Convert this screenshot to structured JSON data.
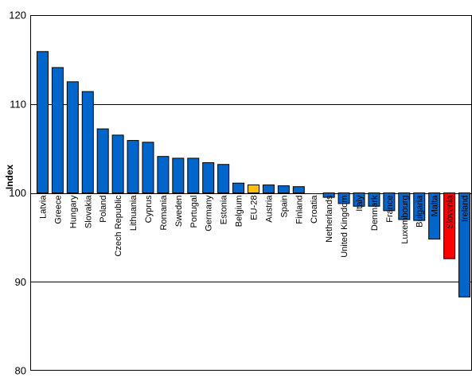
{
  "chart_data": {
    "type": "bar",
    "title": "",
    "xlabel": "",
    "ylabel": "Index",
    "ylim": [
      80,
      120
    ],
    "yticks": [
      "80",
      "90",
      "100",
      "110",
      "120"
    ],
    "baseline": 100,
    "grid": true,
    "legend": "none",
    "categories": [
      "Latvia",
      "Greece",
      "Hungary",
      "Slovakia",
      "Poland",
      "Czech Republic",
      "Lithuania",
      "Cyprus",
      "Romania",
      "Sweden",
      "Portugal",
      "Germany",
      "Estonia",
      "Belgium",
      "EU-28",
      "Austria",
      "Spain",
      "Finland",
      "Croatia",
      "Netherlands",
      "United Kingdom",
      "Italy",
      "Denmark",
      "France",
      "Luxembourg",
      "Bulgaria",
      "Malta",
      "Slovenia",
      "Ireland"
    ],
    "values": [
      115.9,
      114.1,
      112.5,
      111.4,
      107.2,
      106.5,
      105.9,
      105.7,
      104.1,
      103.9,
      103.9,
      103.4,
      103.2,
      101.1,
      100.9,
      100.9,
      100.8,
      100.7,
      100.0,
      99.5,
      98.8,
      98.5,
      98.5,
      98.0,
      97.0,
      96.9,
      94.8,
      92.6,
      88.3
    ],
    "colors": {
      "default": "#0066CC",
      "highlight_eu": "#FFC000",
      "highlight_country": "#FF0000",
      "outline": "#000000",
      "grid": "#000000"
    },
    "highlights": {
      "EU-28": "highlight_eu",
      "Slovenia": "highlight_country"
    }
  }
}
